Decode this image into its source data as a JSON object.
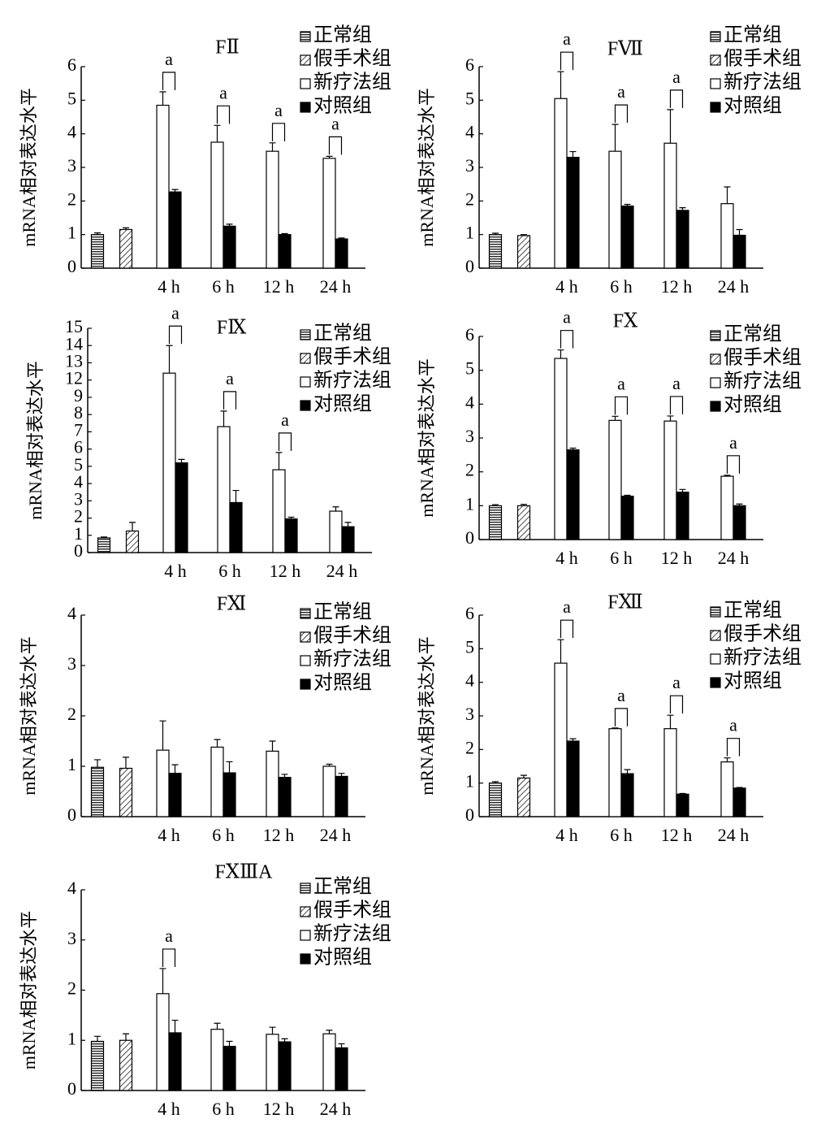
{
  "chart_data": [
    {
      "type": "bar",
      "title": "FⅡ",
      "ylabel": "mRNA相对表达水平",
      "categories": [
        null,
        null,
        "4 h",
        "6 h",
        "12 h",
        "24 h"
      ],
      "ylim": [
        0,
        6
      ],
      "yticks": [
        0,
        1,
        2,
        3,
        4,
        5,
        6
      ],
      "significance": [
        null,
        null,
        "a",
        "a",
        "a",
        "a"
      ],
      "series": [
        {
          "name": "正常组",
          "color": "#ffffff",
          "pattern": "horizontal",
          "values": [
            1.0,
            null,
            null,
            null,
            null,
            null
          ],
          "errors": [
            0.05,
            null,
            null,
            null,
            null,
            null
          ]
        },
        {
          "name": "假手术组",
          "color": "#ffffff",
          "pattern": "diagonal",
          "values": [
            null,
            1.15,
            null,
            null,
            null,
            null
          ],
          "errors": [
            null,
            0.05,
            null,
            null,
            null,
            null
          ]
        },
        {
          "name": "新疗法组",
          "color": "#ffffff",
          "values": [
            null,
            null,
            4.85,
            3.75,
            3.48,
            3.27
          ],
          "errors": [
            null,
            null,
            0.4,
            0.5,
            0.25,
            0.06
          ]
        },
        {
          "name": "对照组",
          "color": "#000000",
          "values": [
            null,
            null,
            2.27,
            1.25,
            1.0,
            0.87
          ],
          "errors": [
            null,
            null,
            0.07,
            0.06,
            0.03,
            0.03
          ]
        }
      ]
    },
    {
      "type": "bar",
      "title": "FⅦ",
      "ylabel": "mRNA相对表达水平",
      "categories": [
        null,
        null,
        "4 h",
        "6 h",
        "12 h",
        "24 h"
      ],
      "ylim": [
        0,
        6
      ],
      "yticks": [
        0,
        1,
        2,
        3,
        4,
        5,
        6
      ],
      "significance": [
        null,
        null,
        "a",
        "a",
        "a",
        null
      ],
      "series": [
        {
          "name": "正常组",
          "color": "#ffffff",
          "pattern": "horizontal",
          "values": [
            1.0,
            null,
            null,
            null,
            null,
            null
          ],
          "errors": [
            0.04,
            null,
            null,
            null,
            null,
            null
          ]
        },
        {
          "name": "假手术组",
          "color": "#ffffff",
          "pattern": "diagonal",
          "values": [
            null,
            0.97,
            null,
            null,
            null,
            null
          ],
          "errors": [
            null,
            0.03,
            null,
            null,
            null,
            null
          ]
        },
        {
          "name": "新疗法组",
          "color": "#ffffff",
          "values": [
            null,
            null,
            5.05,
            3.48,
            3.72,
            1.92
          ],
          "errors": [
            null,
            null,
            0.8,
            0.8,
            1.0,
            0.5
          ]
        },
        {
          "name": "对照组",
          "color": "#000000",
          "values": [
            null,
            null,
            3.3,
            1.85,
            1.72,
            0.98
          ],
          "errors": [
            null,
            null,
            0.17,
            0.05,
            0.08,
            0.17
          ]
        }
      ]
    },
    {
      "type": "bar",
      "title": "FⅨ",
      "ylabel": "mRNA相对表达水平",
      "categories": [
        null,
        null,
        "4 h",
        "6 h",
        "12 h",
        "24 h"
      ],
      "ylim": [
        0,
        15
      ],
      "ybreak": [
        9,
        11
      ],
      "yticks": [
        0,
        1,
        2,
        3,
        4,
        5,
        6,
        7,
        8,
        9,
        12,
        13,
        14,
        15
      ],
      "significance": [
        null,
        null,
        "a",
        "a",
        "a",
        null
      ],
      "series": [
        {
          "name": "正常组",
          "color": "#ffffff",
          "pattern": "horizontal",
          "values": [
            0.85,
            null,
            null,
            null,
            null,
            null
          ],
          "errors": [
            0.05,
            null,
            null,
            null,
            null,
            null
          ]
        },
        {
          "name": "假手术组",
          "color": "#ffffff",
          "pattern": "diagonal",
          "values": [
            null,
            1.25,
            null,
            null,
            null,
            null
          ],
          "errors": [
            null,
            0.5,
            null,
            null,
            null,
            null
          ]
        },
        {
          "name": "新疗法组",
          "color": "#ffffff",
          "values": [
            null,
            null,
            12.4,
            7.3,
            4.8,
            2.4
          ],
          "errors": [
            null,
            null,
            1.6,
            0.9,
            1.0,
            0.25
          ]
        },
        {
          "name": "对照组",
          "color": "#000000",
          "values": [
            null,
            null,
            5.2,
            2.9,
            1.95,
            1.5
          ],
          "errors": [
            null,
            null,
            0.2,
            0.7,
            0.1,
            0.25
          ]
        }
      ]
    },
    {
      "type": "bar",
      "title": "FⅩ",
      "ylabel": "mRNA相对表达水平",
      "categories": [
        null,
        null,
        "4 h",
        "6 h",
        "12 h",
        "24 h"
      ],
      "ylim": [
        0,
        6
      ],
      "yticks": [
        0,
        1,
        2,
        3,
        4,
        5,
        6
      ],
      "significance": [
        null,
        null,
        "a",
        "a",
        "a",
        "a"
      ],
      "series": [
        {
          "name": "正常组",
          "color": "#ffffff",
          "pattern": "horizontal",
          "values": [
            1.0,
            null,
            null,
            null,
            null,
            null
          ],
          "errors": [
            0.03,
            null,
            null,
            null,
            null,
            null
          ]
        },
        {
          "name": "假手术组",
          "color": "#ffffff",
          "pattern": "diagonal",
          "values": [
            null,
            1.0,
            null,
            null,
            null,
            null
          ],
          "errors": [
            null,
            0.04,
            null,
            null,
            null,
            null
          ]
        },
        {
          "name": "新疗法组",
          "color": "#ffffff",
          "values": [
            null,
            null,
            5.35,
            3.52,
            3.5,
            1.87
          ],
          "errors": [
            null,
            null,
            0.25,
            0.12,
            0.15,
            0.03
          ]
        },
        {
          "name": "对照组",
          "color": "#000000",
          "values": [
            null,
            null,
            2.65,
            1.28,
            1.4,
            1.0
          ],
          "errors": [
            null,
            null,
            0.05,
            0.03,
            0.08,
            0.05
          ]
        }
      ]
    },
    {
      "type": "bar",
      "title": "FⅪ",
      "ylabel": "mRNA相对表达水平",
      "categories": [
        null,
        null,
        "4 h",
        "6 h",
        "12 h",
        "24 h"
      ],
      "ylim": [
        0,
        4
      ],
      "yticks": [
        0,
        1,
        2,
        3,
        4
      ],
      "significance": [
        null,
        null,
        null,
        null,
        null,
        null
      ],
      "series": [
        {
          "name": "正常组",
          "color": "#ffffff",
          "pattern": "horizontal",
          "values": [
            0.98,
            null,
            null,
            null,
            null,
            null
          ],
          "errors": [
            0.15,
            null,
            null,
            null,
            null,
            null
          ]
        },
        {
          "name": "假手术组",
          "color": "#ffffff",
          "pattern": "diagonal",
          "values": [
            null,
            0.96,
            null,
            null,
            null,
            null
          ],
          "errors": [
            null,
            0.22,
            null,
            null,
            null,
            null
          ]
        },
        {
          "name": "新疗法组",
          "color": "#ffffff",
          "values": [
            null,
            null,
            1.32,
            1.38,
            1.3,
            1.0
          ],
          "errors": [
            null,
            null,
            0.58,
            0.15,
            0.2,
            0.04
          ]
        },
        {
          "name": "对照组",
          "color": "#000000",
          "values": [
            null,
            null,
            0.86,
            0.87,
            0.78,
            0.8
          ],
          "errors": [
            null,
            null,
            0.17,
            0.22,
            0.06,
            0.06
          ]
        }
      ]
    },
    {
      "type": "bar",
      "title": "FⅫ",
      "ylabel": "mRNA相对表达水平",
      "categories": [
        null,
        null,
        "4 h",
        "6 h",
        "12 h",
        "24 h"
      ],
      "ylim": [
        0,
        6
      ],
      "yticks": [
        0,
        1,
        2,
        3,
        4,
        5,
        6
      ],
      "significance": [
        null,
        null,
        "a",
        "a",
        "a",
        "a"
      ],
      "series": [
        {
          "name": "正常组",
          "color": "#ffffff",
          "pattern": "horizontal",
          "values": [
            1.0,
            null,
            null,
            null,
            null,
            null
          ],
          "errors": [
            0.04,
            null,
            null,
            null,
            null,
            null
          ]
        },
        {
          "name": "假手术组",
          "color": "#ffffff",
          "pattern": "diagonal",
          "values": [
            null,
            1.15,
            null,
            null,
            null,
            null
          ],
          "errors": [
            null,
            0.08,
            null,
            null,
            null,
            null
          ]
        },
        {
          "name": "新疗法组",
          "color": "#ffffff",
          "values": [
            null,
            null,
            4.57,
            2.62,
            2.62,
            1.63
          ],
          "errors": [
            null,
            null,
            0.7,
            0.02,
            0.4,
            0.12
          ]
        },
        {
          "name": "对照组",
          "color": "#000000",
          "values": [
            null,
            null,
            2.25,
            1.28,
            0.67,
            0.85
          ],
          "errors": [
            null,
            null,
            0.07,
            0.12,
            0.02,
            0.02
          ]
        }
      ]
    },
    {
      "type": "bar",
      "title": "FⅩⅢA",
      "ylabel": "mRNA相对表达水平",
      "categories": [
        null,
        null,
        "4 h",
        "6 h",
        "12 h",
        "24 h"
      ],
      "ylim": [
        0,
        4
      ],
      "yticks": [
        0,
        1,
        2,
        3,
        4
      ],
      "significance": [
        null,
        null,
        "a",
        null,
        null,
        null
      ],
      "series": [
        {
          "name": "正常组",
          "color": "#ffffff",
          "pattern": "horizontal",
          "values": [
            0.98,
            null,
            null,
            null,
            null,
            null
          ],
          "errors": [
            0.1,
            null,
            null,
            null,
            null,
            null
          ]
        },
        {
          "name": "假手术组",
          "color": "#ffffff",
          "pattern": "diagonal",
          "values": [
            null,
            1.0,
            null,
            null,
            null,
            null
          ],
          "errors": [
            null,
            0.13,
            null,
            null,
            null,
            null
          ]
        },
        {
          "name": "新疗法组",
          "color": "#ffffff",
          "values": [
            null,
            null,
            1.93,
            1.22,
            1.12,
            1.13
          ],
          "errors": [
            null,
            null,
            0.5,
            0.12,
            0.14,
            0.07
          ]
        },
        {
          "name": "对照组",
          "color": "#000000",
          "values": [
            null,
            null,
            1.15,
            0.88,
            0.97,
            0.85
          ],
          "errors": [
            null,
            null,
            0.25,
            0.1,
            0.06,
            0.08
          ]
        }
      ]
    }
  ]
}
